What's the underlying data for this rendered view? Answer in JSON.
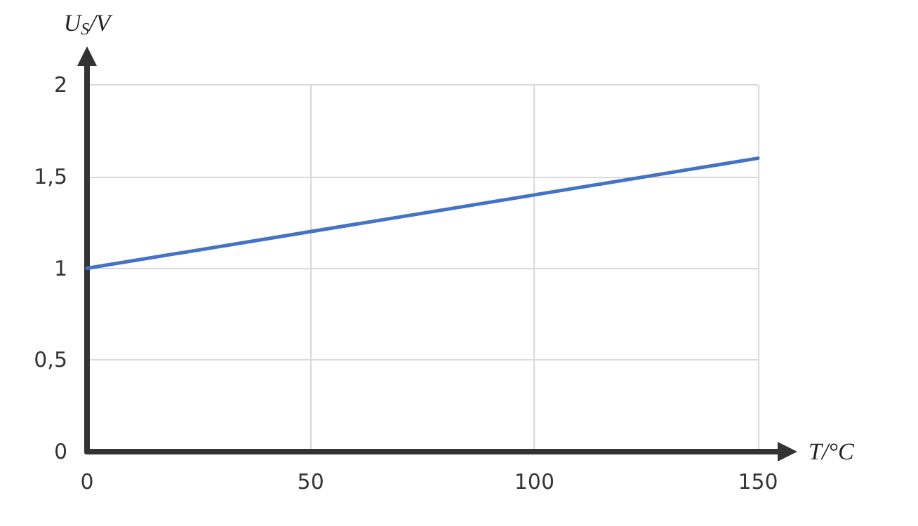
{
  "chart_data": {
    "type": "line",
    "xlabel": "T/°C",
    "ylabel": "U$_{S}$/V",
    "x": [
      0,
      150
    ],
    "series": [
      {
        "color": "#4472c4",
        "values": [
          1,
          1.6
        ]
      }
    ],
    "xlim": [
      0,
      150
    ],
    "xticks": [
      0,
      50,
      100,
      150
    ],
    "ylim": [
      0,
      2
    ],
    "yticks": [
      0,
      {
        "value": 0.5,
        "label": "0,5"
      },
      1,
      {
        "value": 1.5,
        "label": "1,5"
      },
      2
    ],
    "grid": true,
    "marker": "none",
    "line_style": "solid"
  }
}
